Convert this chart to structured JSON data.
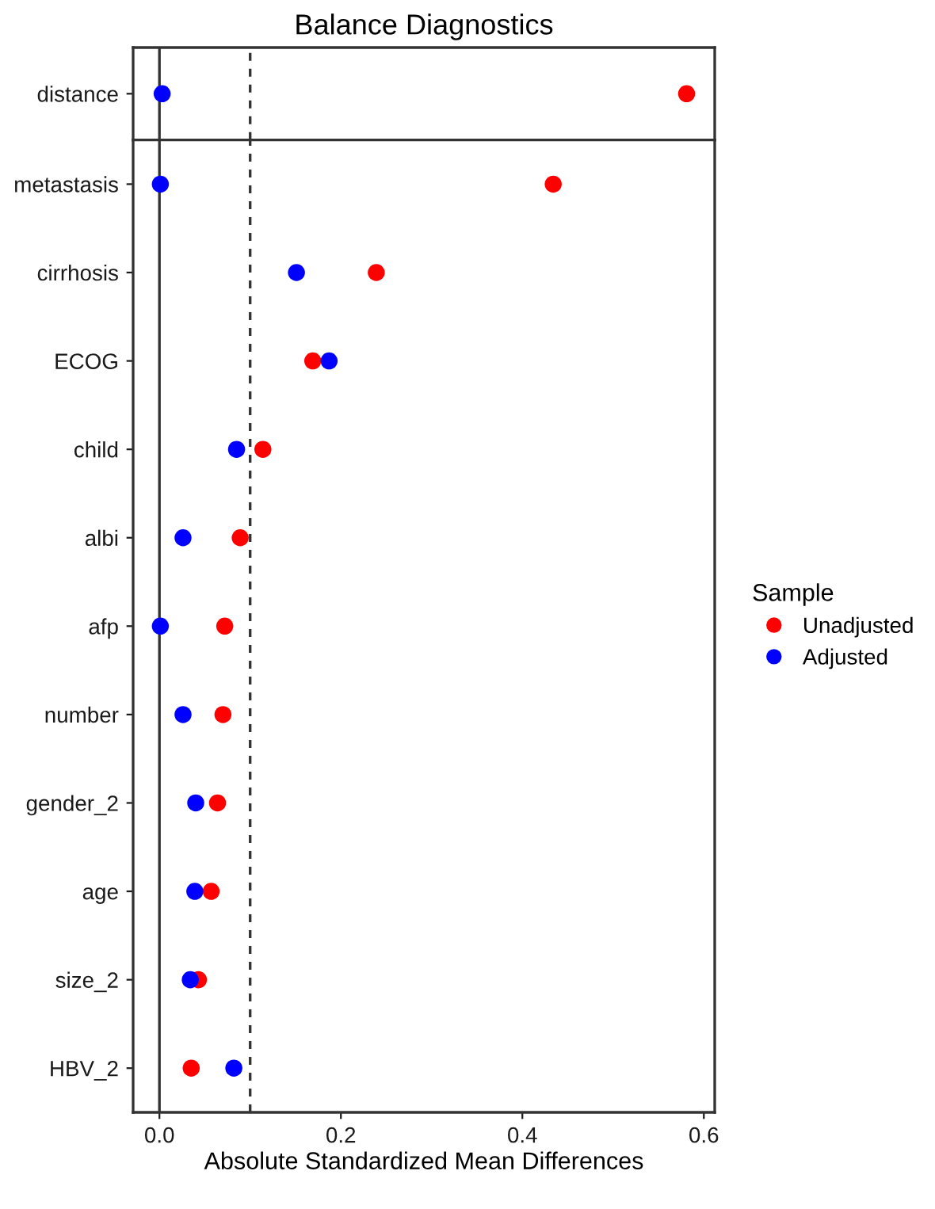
{
  "chart_data": [
    {
      "type": "scatter",
      "orientation": "horizontal",
      "title": "Balance Diagnostics",
      "categories": [
        "distance"
      ],
      "series": [
        {
          "color": "#ff0000",
          "values": [
            0.581
          ]
        },
        {
          "color": "#0000ff",
          "values": [
            0.003
          ]
        }
      ],
      "xlim": [
        -0.029,
        0.612
      ],
      "tick_labels": "y",
      "marker": "circle",
      "grid": false,
      "ref_lines": [
        {
          "axis": "x",
          "value": 0,
          "line_style": "solid"
        },
        {
          "axis": "x",
          "value": 0.1,
          "line_style": "dashed"
        }
      ]
    },
    {
      "type": "scatter",
      "orientation": "horizontal",
      "xlabel": "Absolute Standardized Mean Differences",
      "legend_title": "Sample",
      "legend": "right",
      "categories": [
        "metastasis",
        "cirrhosis",
        "ECOG",
        "child",
        "albi",
        "afp",
        "number",
        "gender_2",
        "age",
        "size_2",
        "HBV_2"
      ],
      "series": [
        {
          "name": "Unadjusted",
          "color": "#ff0000",
          "values": [
            0.434,
            0.239,
            0.169,
            0.114,
            0.089,
            0.072,
            0.07,
            0.064,
            0.057,
            0.043,
            0.035
          ]
        },
        {
          "name": "Adjusted",
          "color": "#0000ff",
          "values": [
            0.001,
            0.151,
            0.187,
            0.085,
            0.026,
            0.001,
            0.026,
            0.04,
            0.039,
            0.034,
            0.082
          ]
        }
      ],
      "xlim": [
        -0.029,
        0.612
      ],
      "xticks": [
        {
          "value": 0,
          "label": "0.0"
        },
        0.2,
        0.4,
        0.6
      ],
      "marker": "circle",
      "grid": false,
      "ref_lines": [
        {
          "axis": "x",
          "value": 0,
          "line_style": "solid"
        },
        {
          "axis": "x",
          "value": 0.1,
          "line_style": "dashed"
        }
      ]
    }
  ]
}
